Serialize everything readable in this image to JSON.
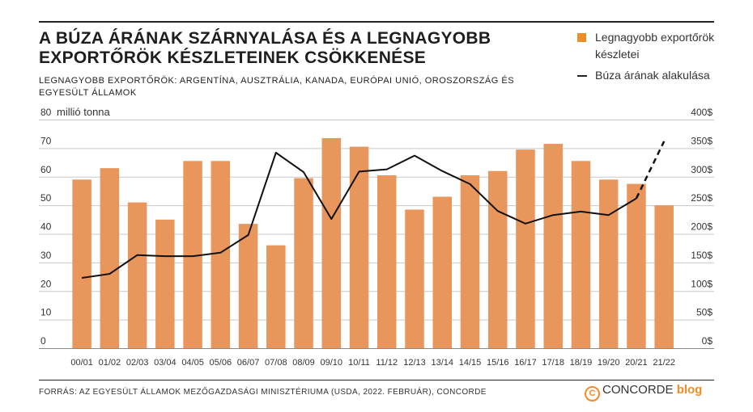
{
  "header": {
    "title": "A BÚZA ÁRÁNAK SZÁRNYALÁSA ÉS A LEGNAGYOBB EXPORTŐRÖK KÉSZLETEINEK CSÖKKENÉSE",
    "subtitle": "LEGNAGYOBB EXPORTŐRÖK: ARGENTÍNA, AUSZTRÁLIA, KANADA, EURÓPAI UNIÓ, OROSZORSZÁG ÉS EGYESÜLT ÁLLAMOK"
  },
  "legend": {
    "bars_label": "Legnagyobb exportőrök készletei",
    "line_label": "Búza árának alakulása"
  },
  "footer": {
    "source": "FORRÁS: AZ EGYESÜLT ÁLLAMOK MEZŐGAZDASÁGI MINISZTÉRIUMA (USDA, 2022. FEBRUÁR), CONCORDE",
    "brand_symbol": "C",
    "brand_name": "CONCORDE",
    "brand_suffix": "blog"
  },
  "colors": {
    "bar": "#e8965c",
    "line": "#111111",
    "accent": "#f28c28"
  },
  "chart_data": {
    "type": "bar",
    "categories": [
      "00/01",
      "01/02",
      "02/03",
      "03/04",
      "04/05",
      "05/06",
      "06/07",
      "07/08",
      "08/09",
      "09/10",
      "10/11",
      "11/12",
      "12/13",
      "13/14",
      "14/15",
      "15/16",
      "16/17",
      "17/18",
      "18/19",
      "19/20",
      "20/21",
      "21/22"
    ],
    "series": [
      {
        "name": "Legnagyobb exportőrök készletei",
        "type": "bar",
        "axis": "left",
        "values": [
          59,
          63,
          51,
          45,
          65.5,
          65.5,
          43.5,
          36,
          59.5,
          73.5,
          70.5,
          60.5,
          48.5,
          53,
          60.5,
          62,
          69.5,
          71.5,
          65.5,
          59,
          57.5,
          50
        ]
      },
      {
        "name": "Búza árának alakulása",
        "type": "line",
        "axis": "right",
        "values": [
          123,
          130,
          163,
          161,
          161,
          167,
          198,
          342,
          308,
          226,
          309,
          313,
          337,
          310,
          287,
          240,
          218,
          233,
          239,
          233,
          262,
          362
        ],
        "dashed_from_index": 20
      }
    ],
    "left_axis": {
      "label": "millió tonna",
      "ylim": [
        0,
        80
      ],
      "ticks": [
        "0",
        "10",
        "20",
        "30",
        "40",
        "50",
        "60",
        "70",
        "80"
      ]
    },
    "right_axis": {
      "ylim": [
        0,
        400
      ],
      "ticks": [
        "0$",
        "50$",
        "100$",
        "150$",
        "200$",
        "250$",
        "300$",
        "350$",
        "400$"
      ]
    },
    "grid": true,
    "legend_position": "top-right"
  }
}
